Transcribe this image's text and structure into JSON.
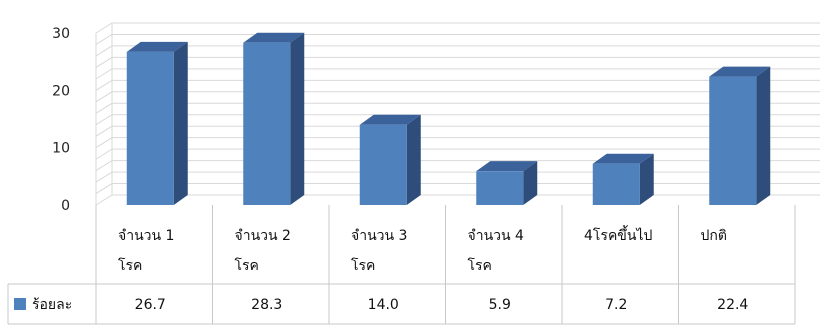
{
  "chart_data": {
    "type": "bar",
    "style": "3d-column-with-data-table",
    "categories": [
      [
        "จำนวน 1",
        "โรค"
      ],
      [
        "จำนวน 2",
        "โรค"
      ],
      [
        "จำนวน 3",
        "โรค"
      ],
      [
        "จำนวน 4",
        "โรค"
      ],
      [
        "4โรคขึ้นไป"
      ],
      [
        "ปกติ"
      ]
    ],
    "series": [
      {
        "name": "ร้อยละ",
        "values": [
          26.7,
          28.3,
          14.0,
          5.9,
          7.2,
          22.4
        ],
        "value_labels": [
          "26.7",
          "28.3",
          "14.0",
          "5.9",
          "7.2",
          "22.4"
        ],
        "color": "#4F81BD",
        "side_color": "#2E4D7A",
        "top_color": "#3B629A"
      }
    ],
    "yticks": [
      0,
      10,
      20,
      30
    ],
    "ylim": [
      0,
      30
    ],
    "grid": true,
    "legend": "in-table-left"
  }
}
